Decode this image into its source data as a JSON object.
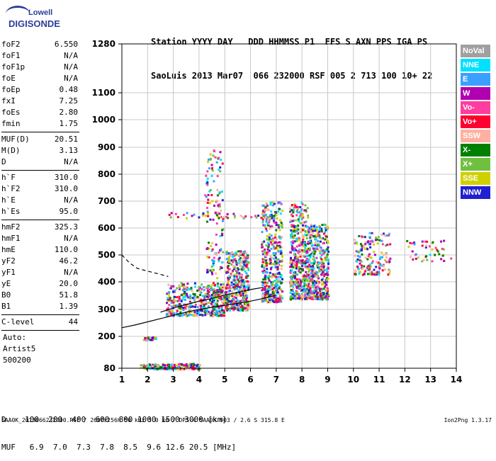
{
  "logo": {
    "line1": "Lowell",
    "line2": "DIGISONDE"
  },
  "header": {
    "row1": "Station YYYY DAY   DDD HHMMSS P1  FFS S AXN PPS IGA PS",
    "row2": "SaoLuis 2013 Mar07  066 232000 RSF 005 2 713 100 10+ 22"
  },
  "params_groups": [
    [
      {
        "label": "foF2",
        "value": "6.550"
      },
      {
        "label": "foF1",
        "value": "N/A"
      },
      {
        "label": "foF1p",
        "value": "N/A"
      },
      {
        "label": "foE",
        "value": "N/A"
      },
      {
        "label": "foEp",
        "value": "0.48"
      },
      {
        "label": "fxI",
        "value": "7.25"
      },
      {
        "label": "foEs",
        "value": "2.80"
      },
      {
        "label": "fmin",
        "value": "1.75"
      }
    ],
    [
      {
        "label": "MUF(D)",
        "value": "20.51"
      },
      {
        "label": "M(D)",
        "value": "3.13"
      },
      {
        "label": "D",
        "value": "N/A"
      }
    ],
    [
      {
        "label": "h`F",
        "value": "310.0"
      },
      {
        "label": "h`F2",
        "value": "310.0"
      },
      {
        "label": "h`E",
        "value": "N/A"
      },
      {
        "label": "h`Es",
        "value": "95.0"
      }
    ],
    [
      {
        "label": "hmF2",
        "value": "325.3"
      },
      {
        "label": "hmF1",
        "value": "N/A"
      },
      {
        "label": "hmE",
        "value": "110.0"
      },
      {
        "label": "yF2",
        "value": "46.2"
      },
      {
        "label": "yF1",
        "value": "N/A"
      },
      {
        "label": "yE",
        "value": "20.0"
      },
      {
        "label": "B0",
        "value": "51.8"
      },
      {
        "label": "B1",
        "value": "1.39"
      }
    ],
    [
      {
        "label": "C-level",
        "value": "44"
      }
    ]
  ],
  "notes": [
    "Auto:",
    "Artist5",
    "500200"
  ],
  "legend": [
    {
      "label": "NoVal",
      "color": "#a0a0a0"
    },
    {
      "label": "NNE",
      "color": "#00e0ff"
    },
    {
      "label": "E",
      "color": "#3aa0ff"
    },
    {
      "label": "W",
      "color": "#b000b0"
    },
    {
      "label": "Vo-",
      "color": "#ff3ca0"
    },
    {
      "label": "Vo+",
      "color": "#ff0030"
    },
    {
      "label": "SSW",
      "color": "#ffb0a0"
    },
    {
      "label": "X-",
      "color": "#008000"
    },
    {
      "label": "X+",
      "color": "#70c040"
    },
    {
      "label": "SSE",
      "color": "#d0d000"
    },
    {
      "label": "NNW",
      "color": "#2020d0"
    }
  ],
  "bottom": {
    "d_row": "D    100  200  400  600  800 1000 1500 3000 [km]",
    "muf_row": "MUF   6.9  7.0  7.3  7.8  8.5  9.6 12.6 20.5 [MHz]"
  },
  "footer": {
    "left": "SAA0K_2013066232000.RSF / 260fx256h 50 kHz 5.0 km / DPS-4 SAA0K 903 / 2.6 S 315.8 E",
    "right": "Ion2Png 1.3.17"
  },
  "chart_data": {
    "type": "scatter",
    "x_ticks": [
      "1",
      "2",
      "3",
      "4",
      "5",
      "6",
      "7",
      "8",
      "9",
      "10",
      "11",
      "12",
      "13",
      "14"
    ],
    "y_ticks": [
      "80",
      "200",
      "300",
      "400",
      "500",
      "600",
      "700",
      "800",
      "900",
      "1000",
      "1100",
      "1280"
    ],
    "xlim": [
      1,
      14
    ],
    "ylim": [
      80,
      1280
    ],
    "y_scale": "sqrt-like (ionogram height)",
    "grid": true,
    "legend_placement": "right",
    "echo_clusters": [
      {
        "x_range": [
          2.7,
          5.0
        ],
        "h_range": [
          280,
          400
        ],
        "density": "high"
      },
      {
        "x_range": [
          4.2,
          4.9
        ],
        "h_range": [
          350,
          900
        ],
        "density": "medium"
      },
      {
        "x_range": [
          5.0,
          5.9
        ],
        "h_range": [
          300,
          520
        ],
        "density": "high"
      },
      {
        "x_range": [
          6.4,
          7.2
        ],
        "h_range": [
          330,
          700
        ],
        "density": "high"
      },
      {
        "x_range": [
          7.5,
          8.2
        ],
        "h_range": [
          340,
          700
        ],
        "density": "high"
      },
      {
        "x_range": [
          8.2,
          9.0
        ],
        "h_range": [
          340,
          620
        ],
        "density": "high"
      },
      {
        "x_range": [
          10.0,
          11.4
        ],
        "h_range": [
          430,
          590
        ],
        "density": "medium"
      },
      {
        "x_range": [
          12.0,
          13.8
        ],
        "h_range": [
          480,
          560
        ],
        "density": "low"
      },
      {
        "x_range": [
          1.8,
          2.3
        ],
        "h_range": [
          190,
          200
        ],
        "density": "low"
      },
      {
        "x_range": [
          1.7,
          4.0
        ],
        "h_range": [
          80,
          100
        ],
        "density": "medium"
      },
      {
        "x_range": [
          2.8,
          6.8
        ],
        "h_range": [
          640,
          660
        ],
        "density": "low"
      }
    ],
    "trace_solid": {
      "x": [
        1.0,
        1.5,
        2.0,
        2.5,
        3.0,
        3.5,
        4.0,
        4.5,
        5.0,
        5.5,
        6.0,
        6.5,
        7.0
      ],
      "h": [
        232,
        242,
        254,
        266,
        278,
        290,
        300,
        308,
        315,
        322,
        330,
        340,
        352
      ]
    },
    "trace_upper": {
      "x": [
        2.5,
        3.0,
        3.5,
        4.0,
        4.5,
        5.0,
        5.5,
        6.0,
        6.5
      ],
      "h": [
        290,
        305,
        318,
        330,
        340,
        352,
        362,
        372,
        380
      ]
    },
    "trace_dashed": {
      "x": [
        1.0,
        1.3,
        1.6,
        2.0,
        2.4,
        2.8
      ],
      "h": [
        500,
        470,
        450,
        440,
        430,
        420
      ]
    }
  }
}
